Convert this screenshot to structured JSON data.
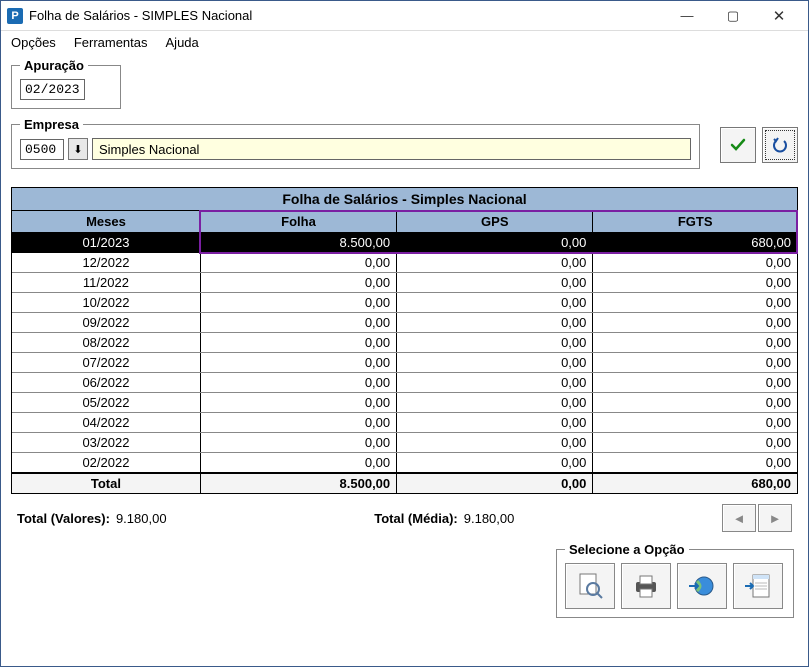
{
  "window": {
    "title": "Folha de Salários - SIMPLES Nacional",
    "icon_letter": "P"
  },
  "menu": {
    "opcoes": "Opções",
    "ferramentas": "Ferramentas",
    "ajuda": "Ajuda"
  },
  "apuracao": {
    "legend": "Apuração",
    "value": "02/2023"
  },
  "empresa": {
    "legend": "Empresa",
    "code": "0500",
    "name": "Simples Nacional"
  },
  "table": {
    "title": "Folha de Salários - Simples Nacional",
    "columns": {
      "meses": "Meses",
      "folha": "Folha",
      "gps": "GPS",
      "fgts": "FGTS"
    },
    "col_widths": {
      "meses": "24%",
      "folha": "25%",
      "gps": "25%",
      "fgts": "26%"
    },
    "rows": [
      {
        "mes": "01/2023",
        "folha": "8.500,00",
        "gps": "0,00",
        "fgts": "680,00",
        "selected": true
      },
      {
        "mes": "12/2022",
        "folha": "0,00",
        "gps": "0,00",
        "fgts": "0,00"
      },
      {
        "mes": "11/2022",
        "folha": "0,00",
        "gps": "0,00",
        "fgts": "0,00"
      },
      {
        "mes": "10/2022",
        "folha": "0,00",
        "gps": "0,00",
        "fgts": "0,00"
      },
      {
        "mes": "09/2022",
        "folha": "0,00",
        "gps": "0,00",
        "fgts": "0,00"
      },
      {
        "mes": "08/2022",
        "folha": "0,00",
        "gps": "0,00",
        "fgts": "0,00"
      },
      {
        "mes": "07/2022",
        "folha": "0,00",
        "gps": "0,00",
        "fgts": "0,00"
      },
      {
        "mes": "06/2022",
        "folha": "0,00",
        "gps": "0,00",
        "fgts": "0,00"
      },
      {
        "mes": "05/2022",
        "folha": "0,00",
        "gps": "0,00",
        "fgts": "0,00"
      },
      {
        "mes": "04/2022",
        "folha": "0,00",
        "gps": "0,00",
        "fgts": "0,00"
      },
      {
        "mes": "03/2022",
        "folha": "0,00",
        "gps": "0,00",
        "fgts": "0,00"
      },
      {
        "mes": "02/2022",
        "folha": "0,00",
        "gps": "0,00",
        "fgts": "0,00"
      }
    ],
    "total_row": {
      "label": "Total",
      "folha": "8.500,00",
      "gps": "0,00",
      "fgts": "680,00"
    },
    "highlight_color": "#7a1fa2"
  },
  "totals": {
    "valores_label": "Total (Valores):",
    "valores_value": "9.180,00",
    "media_label": "Total (Média):",
    "media_value": "9.180,00"
  },
  "options": {
    "legend": "Selecione a Opção"
  },
  "colors": {
    "header_bg": "#9db8d6",
    "selected_bg": "#000000",
    "selected_fg": "#ffffff",
    "input_bg": "#ffffe0",
    "confirm_icon": "#168a16",
    "undo_icon": "#1a4fa0"
  }
}
